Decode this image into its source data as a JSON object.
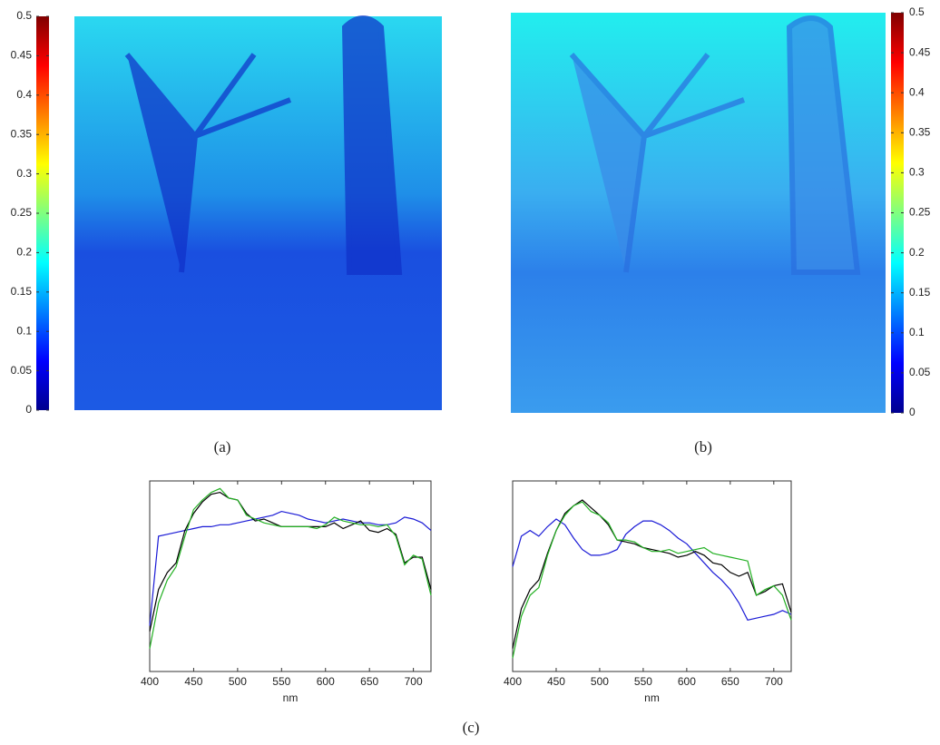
{
  "panels": [
    {
      "label": "(a)",
      "colorbar": {
        "clim": [
          0,
          0.5
        ],
        "ticks": [
          0,
          0.05,
          0.1,
          0.15,
          0.2,
          0.25,
          0.3,
          0.35,
          0.4,
          0.45,
          0.5
        ]
      }
    },
    {
      "label": "(b)",
      "colorbar": {
        "clim": [
          0,
          0.5
        ],
        "ticks": [
          0,
          0.05,
          0.1,
          0.15,
          0.2,
          0.25,
          0.3,
          0.35,
          0.4,
          0.45,
          0.5
        ]
      }
    }
  ],
  "chart_data": [
    {
      "type": "line",
      "xlabel": "nm",
      "x": [
        400,
        410,
        420,
        430,
        440,
        450,
        460,
        470,
        480,
        490,
        500,
        510,
        520,
        530,
        540,
        550,
        560,
        570,
        580,
        590,
        600,
        610,
        620,
        630,
        640,
        650,
        660,
        670,
        680,
        690,
        700,
        710,
        720
      ],
      "xlim": [
        400,
        720
      ],
      "xticks": [
        400,
        450,
        500,
        550,
        600,
        650,
        700
      ],
      "ylim": [
        0,
        1
      ],
      "series": [
        {
          "color": "#1a1ad6",
          "values": [
            0.24,
            0.71,
            0.72,
            0.73,
            0.74,
            0.75,
            0.76,
            0.76,
            0.77,
            0.77,
            0.78,
            0.79,
            0.8,
            0.81,
            0.82,
            0.84,
            0.83,
            0.82,
            0.8,
            0.79,
            0.78,
            0.79,
            0.8,
            0.79,
            0.78,
            0.78,
            0.77,
            0.77,
            0.78,
            0.81,
            0.8,
            0.78,
            0.74
          ]
        },
        {
          "color": "#000000",
          "values": [
            0.21,
            0.43,
            0.52,
            0.57,
            0.74,
            0.83,
            0.89,
            0.93,
            0.94,
            0.91,
            0.9,
            0.83,
            0.79,
            0.8,
            0.78,
            0.76,
            0.76,
            0.76,
            0.76,
            0.76,
            0.76,
            0.78,
            0.75,
            0.77,
            0.79,
            0.74,
            0.73,
            0.75,
            0.72,
            0.57,
            0.6,
            0.6,
            0.43
          ]
        },
        {
          "color": "#22b022",
          "values": [
            0.12,
            0.36,
            0.48,
            0.55,
            0.71,
            0.85,
            0.9,
            0.94,
            0.96,
            0.91,
            0.9,
            0.82,
            0.8,
            0.78,
            0.77,
            0.76,
            0.76,
            0.76,
            0.76,
            0.75,
            0.77,
            0.81,
            0.79,
            0.78,
            0.77,
            0.77,
            0.76,
            0.77,
            0.71,
            0.56,
            0.61,
            0.59,
            0.4
          ]
        }
      ]
    },
    {
      "type": "line",
      "xlabel": "nm",
      "x": [
        400,
        410,
        420,
        430,
        440,
        450,
        460,
        470,
        480,
        490,
        500,
        510,
        520,
        530,
        540,
        550,
        560,
        570,
        580,
        590,
        600,
        610,
        620,
        630,
        640,
        650,
        660,
        670,
        680,
        690,
        700,
        710,
        720
      ],
      "xlim": [
        400,
        720
      ],
      "xticks": [
        400,
        450,
        500,
        550,
        600,
        650,
        700
      ],
      "ylim": [
        0,
        1
      ],
      "series": [
        {
          "color": "#1a1ad6",
          "values": [
            0.55,
            0.71,
            0.74,
            0.71,
            0.76,
            0.8,
            0.77,
            0.7,
            0.64,
            0.61,
            0.61,
            0.62,
            0.64,
            0.72,
            0.76,
            0.79,
            0.79,
            0.77,
            0.74,
            0.7,
            0.67,
            0.62,
            0.57,
            0.52,
            0.48,
            0.43,
            0.36,
            0.27,
            0.28,
            0.29,
            0.3,
            0.32,
            0.3
          ]
        },
        {
          "color": "#000000",
          "values": [
            0.12,
            0.33,
            0.43,
            0.48,
            0.62,
            0.74,
            0.83,
            0.87,
            0.9,
            0.86,
            0.82,
            0.77,
            0.69,
            0.68,
            0.67,
            0.65,
            0.64,
            0.63,
            0.62,
            0.6,
            0.61,
            0.63,
            0.61,
            0.57,
            0.56,
            0.52,
            0.5,
            0.52,
            0.4,
            0.42,
            0.45,
            0.46,
            0.31
          ]
        },
        {
          "color": "#22b022",
          "values": [
            0.07,
            0.29,
            0.4,
            0.44,
            0.61,
            0.74,
            0.82,
            0.87,
            0.89,
            0.84,
            0.82,
            0.78,
            0.69,
            0.69,
            0.68,
            0.65,
            0.63,
            0.63,
            0.64,
            0.62,
            0.63,
            0.64,
            0.65,
            0.62,
            0.61,
            0.6,
            0.59,
            0.58,
            0.4,
            0.43,
            0.45,
            0.4,
            0.27
          ]
        }
      ]
    }
  ],
  "caption": "(c)"
}
